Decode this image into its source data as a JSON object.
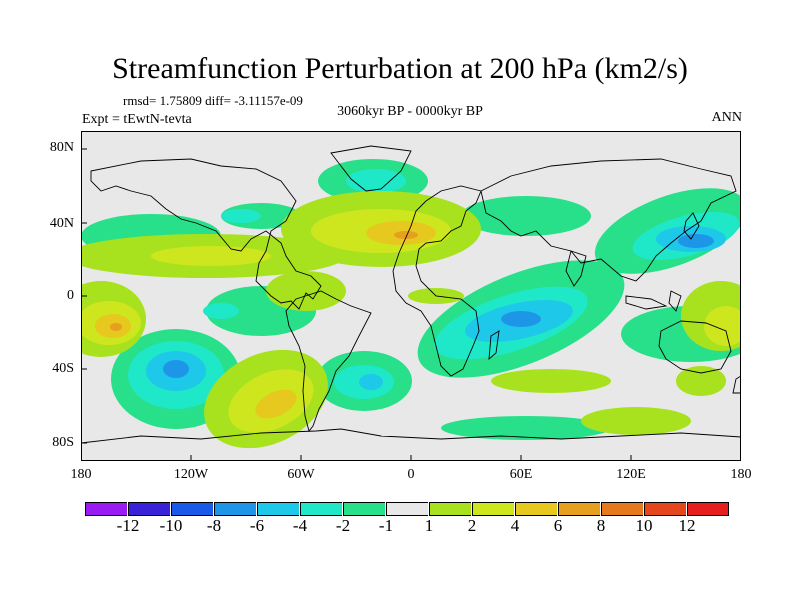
{
  "title": "Streamfunction Perturbation at 200 hPa (km2/s)",
  "stats": "rmsd= 1.75809 diff= -3.11157e-09",
  "experiment": "Expt = tEwtN-tevta",
  "period": "3060kyr BP - 0000kyr BP",
  "season": "ANN",
  "map": {
    "lat_labels": [
      "80N",
      "40N",
      "0",
      "40S",
      "80S"
    ],
    "lon_labels": [
      "180",
      "120W",
      "60W",
      "0",
      "60E",
      "120E",
      "180"
    ]
  },
  "colorbar": {
    "colors": [
      "#9a1cf2",
      "#3a22d8",
      "#1a5ae8",
      "#1e96e8",
      "#1ec8e8",
      "#1ee8c8",
      "#28e08a",
      "#e8e8e8",
      "#a8e21e",
      "#cde61e",
      "#e6c81e",
      "#e6a01e",
      "#e6781e",
      "#e6461e",
      "#e61e1e"
    ],
    "labels": [
      "-12",
      "-10",
      "-8",
      "-6",
      "-4",
      "-2",
      "-1",
      "1",
      "2",
      "4",
      "6",
      "8",
      "10",
      "12"
    ]
  },
  "chart_data": {
    "type": "heatmap",
    "title": "Streamfunction Perturbation at 200 hPa (km2/s)",
    "x": [
      -180,
      -120,
      -60,
      0,
      60,
      120,
      180
    ],
    "y": [
      -80,
      -40,
      0,
      40,
      80
    ],
    "levels": [
      -12,
      -10,
      -8,
      -6,
      -4,
      -2,
      -1,
      1,
      2,
      4,
      6,
      8,
      10,
      12
    ],
    "xlabel": "",
    "ylabel": "",
    "notes": "Filled contours of 200 hPa streamfunction anomaly over world map"
  }
}
